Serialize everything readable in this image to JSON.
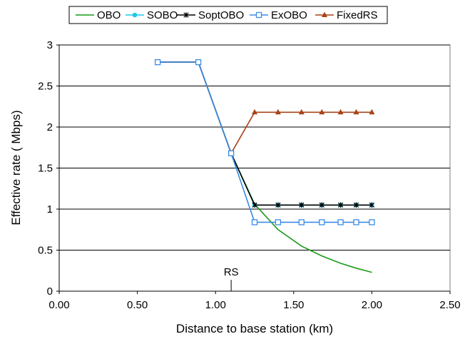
{
  "chart_data": {
    "type": "line",
    "xlabel": "Distance to base station (km)",
    "ylabel": "Effective rate ( Mbps)",
    "xlim": [
      0,
      2.5
    ],
    "ylim": [
      0,
      3
    ],
    "x_ticks": [
      "0.00",
      "0.50",
      "1.00",
      "1.50",
      "2.00",
      "2.50"
    ],
    "y_ticks": [
      "0",
      "0.5",
      "1",
      "1.5",
      "2",
      "2.5",
      "3"
    ],
    "grid": "horizontal",
    "legend_position": "top",
    "annotation": {
      "text": "RS",
      "x": 1.1
    },
    "series": [
      {
        "name": "OBO",
        "color": "#1a9a1a",
        "marker": "none",
        "x": [
          0.63,
          0.89,
          1.1,
          1.25,
          1.4,
          1.55,
          1.68,
          1.8,
          1.9,
          2.0
        ],
        "y": [
          2.79,
          2.79,
          1.68,
          1.06,
          0.75,
          0.55,
          0.43,
          0.34,
          0.28,
          0.23
        ]
      },
      {
        "name": "SOBO",
        "color": "#1ec8e8",
        "marker": "circle",
        "x": [
          0.63,
          0.89,
          1.1,
          1.25,
          1.4,
          1.55,
          1.68,
          1.8,
          1.9,
          2.0
        ],
        "y": [
          2.79,
          2.79,
          1.68,
          1.05,
          1.05,
          1.05,
          1.05,
          1.05,
          1.05,
          1.05
        ]
      },
      {
        "name": "SoptOBO",
        "color": "#000000",
        "marker": "star",
        "x": [
          0.63,
          0.89,
          1.1,
          1.25,
          1.4,
          1.55,
          1.68,
          1.8,
          1.9,
          2.0
        ],
        "y": [
          2.79,
          2.79,
          1.68,
          1.05,
          1.05,
          1.05,
          1.05,
          1.05,
          1.05,
          1.05
        ]
      },
      {
        "name": "ExOBO",
        "color": "#3a8be8",
        "marker": "square",
        "x": [
          0.63,
          0.89,
          1.1,
          1.25,
          1.4,
          1.55,
          1.68,
          1.8,
          1.9,
          2.0
        ],
        "y": [
          2.79,
          2.79,
          1.68,
          0.84,
          0.84,
          0.84,
          0.84,
          0.84,
          0.84,
          0.84
        ]
      },
      {
        "name": "FixedRS",
        "color": "#a8431a",
        "marker": "triangle",
        "x": [
          0.63,
          0.89,
          1.1,
          1.25,
          1.4,
          1.55,
          1.68,
          1.8,
          1.9,
          2.0
        ],
        "y": [
          2.79,
          2.79,
          1.68,
          2.18,
          2.18,
          2.18,
          2.18,
          2.18,
          2.18,
          2.18
        ]
      }
    ]
  }
}
